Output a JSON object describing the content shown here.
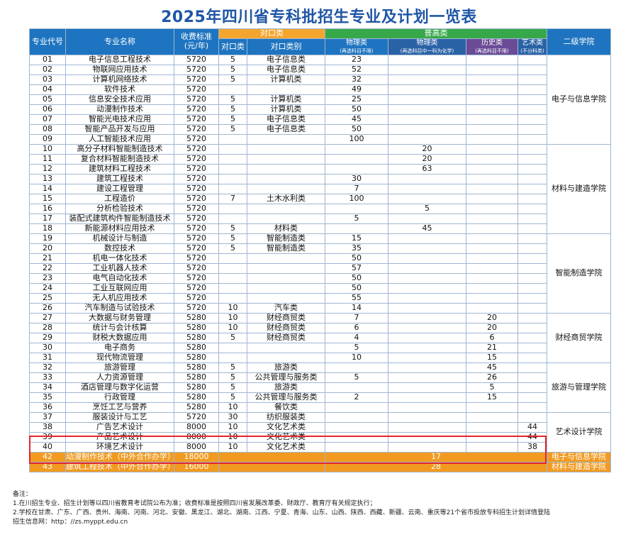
{
  "title": "2025年四川省专科批招生专业及计划一览表",
  "headers": {
    "code": "专业代号",
    "name": "专业名称",
    "fee": "收费标准（元/年）",
    "fee_l1": "收费标准",
    "fee_l2": "(元/年)",
    "duikou": "对口类",
    "puguo": "普高类",
    "college": "二级学院",
    "dk_class": "对口类",
    "dk_type": "对口类别",
    "wl1": "物理类",
    "wl1_sub": "(再选科目不限)",
    "wl2": "物理类",
    "wl2_sub": "(再选科目中一科为化学)",
    "ls": "历史类",
    "ls_sub": "(再选科目不限)",
    "ys": "艺术类",
    "ys_sub": "(不分科类)"
  },
  "rows": [
    {
      "code": "01",
      "name": "电子信息工程技术",
      "fee": "5720",
      "dk": "5",
      "dktype": "电子信息类",
      "wl1": "23",
      "wl2": "",
      "ls": "",
      "ys": ""
    },
    {
      "code": "02",
      "name": "物联网应用技术",
      "fee": "5720",
      "dk": "5",
      "dktype": "电子信息类",
      "wl1": "52",
      "wl2": "",
      "ls": "",
      "ys": ""
    },
    {
      "code": "03",
      "name": "计算机网络技术",
      "fee": "5720",
      "dk": "5",
      "dktype": "计算机类",
      "wl1": "32",
      "wl2": "",
      "ls": "",
      "ys": ""
    },
    {
      "code": "04",
      "name": "软件技术",
      "fee": "5720",
      "dk": "",
      "dktype": "",
      "wl1": "49",
      "wl2": "",
      "ls": "",
      "ys": ""
    },
    {
      "code": "05",
      "name": "信息安全技术应用",
      "fee": "5720",
      "dk": "5",
      "dktype": "计算机类",
      "wl1": "25",
      "wl2": "",
      "ls": "",
      "ys": ""
    },
    {
      "code": "06",
      "name": "动漫制作技术",
      "fee": "5720",
      "dk": "5",
      "dktype": "计算机类",
      "wl1": "50",
      "wl2": "",
      "ls": "",
      "ys": ""
    },
    {
      "code": "07",
      "name": "智能光电技术应用",
      "fee": "5720",
      "dk": "5",
      "dktype": "电子信息类",
      "wl1": "45",
      "wl2": "",
      "ls": "",
      "ys": ""
    },
    {
      "code": "08",
      "name": "智能产品开发与应用",
      "fee": "5720",
      "dk": "5",
      "dktype": "电子信息类",
      "wl1": "50",
      "wl2": "",
      "ls": "",
      "ys": ""
    },
    {
      "code": "09",
      "name": "人工智能技术应用",
      "fee": "5720",
      "dk": "",
      "dktype": "",
      "wl1": "100",
      "wl2": "",
      "ls": "",
      "ys": ""
    },
    {
      "code": "10",
      "name": "高分子材料智能制造技术",
      "fee": "5720",
      "dk": "",
      "dktype": "",
      "wl1": "",
      "wl2": "20",
      "ls": "",
      "ys": ""
    },
    {
      "code": "11",
      "name": "复合材料智能制造技术",
      "fee": "5720",
      "dk": "",
      "dktype": "",
      "wl1": "",
      "wl2": "20",
      "ls": "",
      "ys": ""
    },
    {
      "code": "12",
      "name": "建筑材料工程技术",
      "fee": "5720",
      "dk": "",
      "dktype": "",
      "wl1": "",
      "wl2": "63",
      "ls": "",
      "ys": ""
    },
    {
      "code": "13",
      "name": "建筑工程技术",
      "fee": "5720",
      "dk": "",
      "dktype": "",
      "wl1": "30",
      "wl2": "",
      "ls": "",
      "ys": ""
    },
    {
      "code": "14",
      "name": "建设工程管理",
      "fee": "5720",
      "dk": "",
      "dktype": "",
      "wl1": "7",
      "wl2": "",
      "ls": "",
      "ys": ""
    },
    {
      "code": "15",
      "name": "工程造价",
      "fee": "5720",
      "dk": "7",
      "dktype": "土木水利类",
      "wl1": "100",
      "wl2": "",
      "ls": "",
      "ys": ""
    },
    {
      "code": "16",
      "name": "分析检验技术",
      "fee": "5720",
      "dk": "",
      "dktype": "",
      "wl1": "",
      "wl2": "5",
      "ls": "",
      "ys": ""
    },
    {
      "code": "17",
      "name": "装配式建筑构件智能制造技术",
      "fee": "5720",
      "dk": "",
      "dktype": "",
      "wl1": "5",
      "wl2": "",
      "ls": "",
      "ys": ""
    },
    {
      "code": "18",
      "name": "新能源材料应用技术",
      "fee": "5720",
      "dk": "5",
      "dktype": "材料类",
      "wl1": "",
      "wl2": "45",
      "ls": "",
      "ys": ""
    },
    {
      "code": "19",
      "name": "机械设计与制造",
      "fee": "5720",
      "dk": "5",
      "dktype": "智能制造类",
      "wl1": "15",
      "wl2": "",
      "ls": "",
      "ys": ""
    },
    {
      "code": "20",
      "name": "数控技术",
      "fee": "5720",
      "dk": "5",
      "dktype": "智能制造类",
      "wl1": "35",
      "wl2": "",
      "ls": "",
      "ys": ""
    },
    {
      "code": "21",
      "name": "机电一体化技术",
      "fee": "5720",
      "dk": "",
      "dktype": "",
      "wl1": "50",
      "wl2": "",
      "ls": "",
      "ys": ""
    },
    {
      "code": "22",
      "name": "工业机器人技术",
      "fee": "5720",
      "dk": "",
      "dktype": "",
      "wl1": "57",
      "wl2": "",
      "ls": "",
      "ys": ""
    },
    {
      "code": "23",
      "name": "电气自动化技术",
      "fee": "5720",
      "dk": "",
      "dktype": "",
      "wl1": "50",
      "wl2": "",
      "ls": "",
      "ys": ""
    },
    {
      "code": "24",
      "name": "工业互联网应用",
      "fee": "5720",
      "dk": "",
      "dktype": "",
      "wl1": "50",
      "wl2": "",
      "ls": "",
      "ys": ""
    },
    {
      "code": "25",
      "name": "无人机应用技术",
      "fee": "5720",
      "dk": "",
      "dktype": "",
      "wl1": "55",
      "wl2": "",
      "ls": "",
      "ys": ""
    },
    {
      "code": "26",
      "name": "汽车制造与试验技术",
      "fee": "5720",
      "dk": "10",
      "dktype": "汽车类",
      "wl1": "14",
      "wl2": "",
      "ls": "",
      "ys": ""
    },
    {
      "code": "27",
      "name": "大数据与财务管理",
      "fee": "5280",
      "dk": "10",
      "dktype": "财经商贸类",
      "wl1": "7",
      "wl2": "",
      "ls": "20",
      "ys": ""
    },
    {
      "code": "28",
      "name": "统计与会计核算",
      "fee": "5280",
      "dk": "10",
      "dktype": "财经商贸类",
      "wl1": "6",
      "wl2": "",
      "ls": "20",
      "ys": ""
    },
    {
      "code": "29",
      "name": "财税大数据应用",
      "fee": "5280",
      "dk": "5",
      "dktype": "财经商贸类",
      "wl1": "4",
      "wl2": "",
      "ls": "6",
      "ys": ""
    },
    {
      "code": "30",
      "name": "电子商务",
      "fee": "5280",
      "dk": "",
      "dktype": "",
      "wl1": "5",
      "wl2": "",
      "ls": "21",
      "ys": ""
    },
    {
      "code": "31",
      "name": "现代物流管理",
      "fee": "5280",
      "dk": "",
      "dktype": "",
      "wl1": "10",
      "wl2": "",
      "ls": "15",
      "ys": ""
    },
    {
      "code": "32",
      "name": "旅游管理",
      "fee": "5280",
      "dk": "5",
      "dktype": "旅游类",
      "wl1": "",
      "wl2": "",
      "ls": "45",
      "ys": ""
    },
    {
      "code": "33",
      "name": "人力资源管理",
      "fee": "5280",
      "dk": "5",
      "dktype": "公共管理与服务类",
      "wl1": "5",
      "wl2": "",
      "ls": "26",
      "ys": ""
    },
    {
      "code": "34",
      "name": "酒店管理与数字化运营",
      "fee": "5280",
      "dk": "5",
      "dktype": "旅游类",
      "wl1": "",
      "wl2": "",
      "ls": "5",
      "ys": ""
    },
    {
      "code": "35",
      "name": "行政管理",
      "fee": "5280",
      "dk": "5",
      "dktype": "公共管理与服务类",
      "wl1": "2",
      "wl2": "",
      "ls": "15",
      "ys": ""
    },
    {
      "code": "36",
      "name": "烹饪工艺与营养",
      "fee": "5280",
      "dk": "10",
      "dktype": "餐饮类",
      "wl1": "",
      "wl2": "",
      "ls": "",
      "ys": ""
    },
    {
      "code": "37",
      "name": "服装设计与工艺",
      "fee": "5720",
      "dk": "30",
      "dktype": "纺织服装类",
      "wl1": "",
      "wl2": "",
      "ls": "",
      "ys": ""
    },
    {
      "code": "38",
      "name": "广告艺术设计",
      "fee": "8000",
      "dk": "10",
      "dktype": "文化艺术类",
      "wl1": "",
      "wl2": "",
      "ls": "",
      "ys": "44"
    },
    {
      "code": "39",
      "name": "产品艺术设计",
      "fee": "8000",
      "dk": "10",
      "dktype": "文化艺术类",
      "wl1": "",
      "wl2": "",
      "ls": "",
      "ys": "44"
    },
    {
      "code": "40",
      "name": "环境艺术设计",
      "fee": "8000",
      "dk": "10",
      "dktype": "文化艺术类",
      "wl1": "",
      "wl2": "",
      "ls": "",
      "ys": "38"
    }
  ],
  "colleges": [
    {
      "name": "电子与信息学院",
      "span": 9
    },
    {
      "name": "材料与建造学院",
      "span": 9
    },
    {
      "name": "智能制造学院",
      "span": 8
    },
    {
      "name": "财经商贸学院",
      "span": 5
    },
    {
      "name": "旅游与管理学院",
      "span": 5
    },
    {
      "name": "艺术设计学院",
      "span": 4
    }
  ],
  "special_rows": [
    {
      "code": "42",
      "name": "动漫制作技术（中外合作办学）",
      "fee": "18000",
      "puguo": "17",
      "college": "电子与信息学院"
    },
    {
      "code": "43",
      "name": "建筑工程技术（中外合作办学）",
      "fee": "16000",
      "puguo": "28",
      "college": "材料与建造学院"
    }
  ],
  "notes": [
    "备注：",
    "1.在川招生专业、招生计划等以四川省教育考试院公布为准；收费标准是按照四川省发展改革委、财政厅、教育厅有关规定执行；",
    "2.学校在甘肃、广东、广西、贵州、海南、河南、河北、安徽、黑龙江、湖北、湖南、江西、宁夏、青海、山东、山西、陕西、西藏、新疆、云南、重庆等21个省市投放专科招生计划详情登陆",
    "招生信息网：http：//zs.myppt.edu.cn"
  ],
  "colors": {
    "title": "#1f56a6",
    "header_blue": "#1e74c0",
    "header_orange": "#f4a52e",
    "header_green": "#37a84a",
    "row_orange": "#f29a20",
    "highlight_red": "#e5252b"
  }
}
